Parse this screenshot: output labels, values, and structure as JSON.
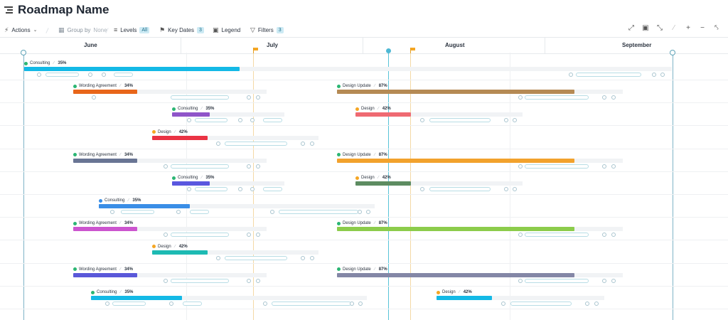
{
  "header": {
    "title": "Roadmap Name"
  },
  "toolbar": {
    "actions": "Actions",
    "group_by": "Group by",
    "group_by_value": "None",
    "levels": "Levels",
    "levels_value": "All",
    "key_dates": "Key Dates",
    "key_dates_count": "3",
    "legend": "Legend",
    "filters": "Filters",
    "filters_count": "3"
  },
  "timeline": {
    "months": [
      "June",
      "July",
      "August",
      "September"
    ]
  },
  "rows": [
    {
      "items": [
        {
          "label": "Consulting",
          "pct": "35%",
          "dot": "#2bb673",
          "color": "#14b9e6"
        }
      ]
    },
    {
      "items": [
        {
          "label": "Wording Agreement",
          "pct": "34%",
          "dot": "#2bb673",
          "color": "#e8661a"
        },
        {
          "label": "Design Update",
          "pct": "87%",
          "dot": "#2bb673",
          "color": "#b58a54"
        }
      ]
    },
    {
      "items": [
        {
          "label": "Consulting",
          "pct": "35%",
          "dot": "#2bb673",
          "color": "#8f55c9"
        },
        {
          "label": "Design",
          "pct": "42%",
          "dot": "#f5a623",
          "color": "#ef6a72"
        }
      ]
    },
    {
      "items": [
        {
          "label": "Design",
          "pct": "42%",
          "dot": "#f5a623",
          "color": "#ea3344"
        }
      ]
    },
    {
      "items": [
        {
          "label": "Wording Agreement",
          "pct": "34%",
          "dot": "#2bb673",
          "color": "#697594"
        },
        {
          "label": "Design Update",
          "pct": "87%",
          "dot": "#2bb673",
          "color": "#f2a22d"
        }
      ]
    },
    {
      "items": [
        {
          "label": "Consulting",
          "pct": "35%",
          "dot": "#2bb673",
          "color": "#5a57df"
        },
        {
          "label": "Design",
          "pct": "42%",
          "dot": "#f5a623",
          "color": "#5d8c61"
        }
      ]
    },
    {
      "items": [
        {
          "label": "Consulting",
          "pct": "35%",
          "dot": "#3a8ee6",
          "color": "#3a8ee6"
        }
      ]
    },
    {
      "items": [
        {
          "label": "Wording Agreement",
          "pct": "34%",
          "dot": "#2bb673",
          "color": "#cc55cf"
        },
        {
          "label": "Design Update",
          "pct": "87%",
          "dot": "#2bb673",
          "color": "#8ccc4b"
        }
      ]
    },
    {
      "items": [
        {
          "label": "Design",
          "pct": "42%",
          "dot": "#f5a623",
          "color": "#1dbab3"
        }
      ]
    },
    {
      "items": [
        {
          "label": "Wording Agreement",
          "pct": "34%",
          "dot": "#2bb673",
          "color": "#5a58d9"
        },
        {
          "label": "Design Update",
          "pct": "87%",
          "dot": "#2bb673",
          "color": "#8487a6"
        }
      ]
    },
    {
      "items": [
        {
          "label": "Consulting",
          "pct": "35%",
          "dot": "#2bb673",
          "color": "#14b9e6"
        },
        {
          "label": "Design",
          "pct": "42%",
          "dot": "#f5a623",
          "color": "#14b9e6"
        }
      ]
    }
  ]
}
